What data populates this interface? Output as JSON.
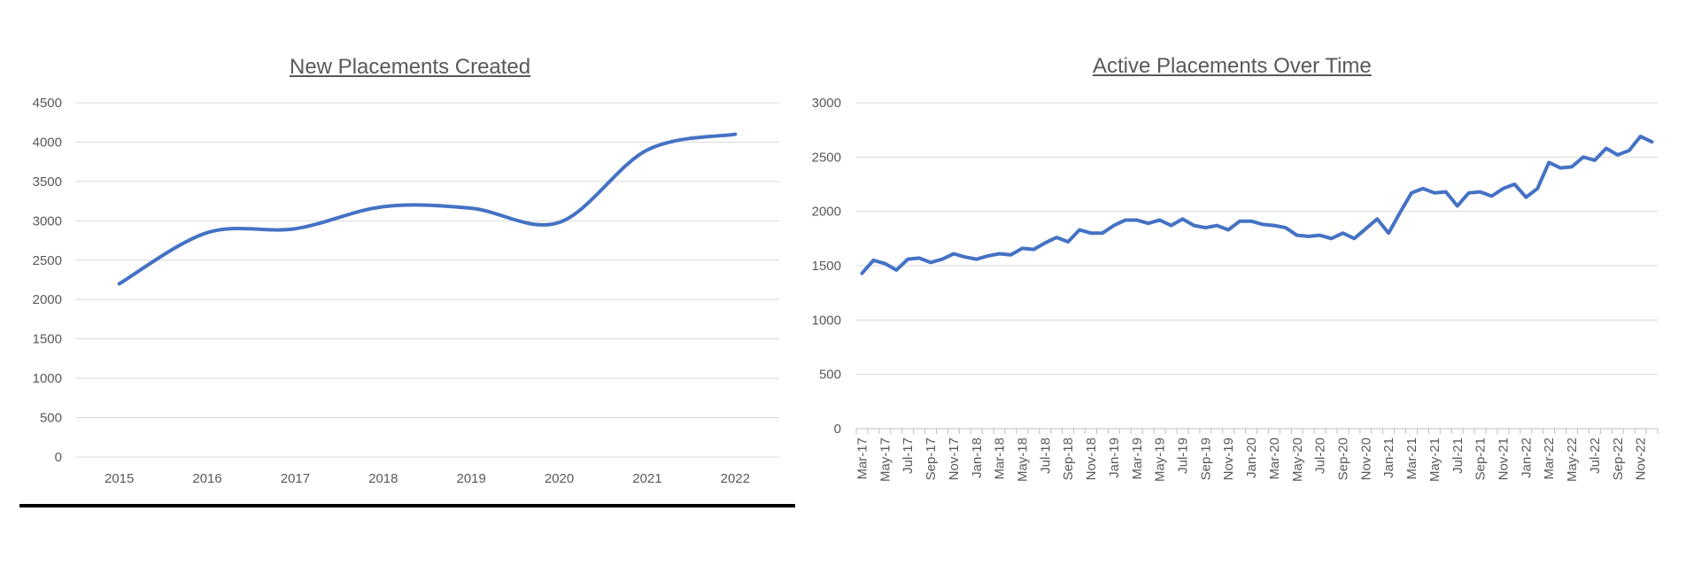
{
  "chart_data": [
    {
      "type": "line",
      "title": "New Placements Created",
      "xlabel": "",
      "ylabel": "",
      "categories": [
        "2015",
        "2016",
        "2017",
        "2018",
        "2019",
        "2020",
        "2021",
        "2022"
      ],
      "values": [
        2200,
        2850,
        2900,
        3180,
        3160,
        2980,
        3900,
        4100
      ],
      "y_ticks": [
        0,
        500,
        1000,
        1500,
        2000,
        2500,
        3000,
        3500,
        4000,
        4500
      ],
      "ylim": [
        0,
        4500
      ],
      "smooth": true,
      "grid": true,
      "legend": "none",
      "color": "#4472c4"
    },
    {
      "type": "line",
      "title": "Active Placements Over Time",
      "xlabel": "",
      "ylabel": "",
      "categories": [
        "Mar-17",
        "Apr-17",
        "May-17",
        "Jun-17",
        "Jul-17",
        "Aug-17",
        "Sep-17",
        "Oct-17",
        "Nov-17",
        "Dec-17",
        "Jan-18",
        "Feb-18",
        "Mar-18",
        "Apr-18",
        "May-18",
        "Jun-18",
        "Jul-18",
        "Aug-18",
        "Sep-18",
        "Oct-18",
        "Nov-18",
        "Dec-18",
        "Jan-19",
        "Feb-19",
        "Mar-19",
        "Apr-19",
        "May-19",
        "Jun-19",
        "Jul-19",
        "Aug-19",
        "Sep-19",
        "Oct-19",
        "Nov-19",
        "Dec-19",
        "Jan-20",
        "Feb-20",
        "Mar-20",
        "Apr-20",
        "May-20",
        "Jun-20",
        "Jul-20",
        "Aug-20",
        "Sep-20",
        "Oct-20",
        "Nov-20",
        "Dec-20",
        "Jan-21",
        "Feb-21",
        "Mar-21",
        "Apr-21",
        "May-21",
        "Jun-21",
        "Jul-21",
        "Aug-21",
        "Sep-21",
        "Oct-21",
        "Nov-21",
        "Dec-21",
        "Jan-22",
        "Feb-22",
        "Mar-22",
        "Apr-22",
        "May-22",
        "Jun-22",
        "Jul-22",
        "Aug-22",
        "Sep-22",
        "Oct-22",
        "Nov-22",
        "Dec-22"
      ],
      "tick_labels": [
        "Mar-17",
        "May-17",
        "Jul-17",
        "Sep-17",
        "Nov-17",
        "Jan-18",
        "Mar-18",
        "May-18",
        "Jul-18",
        "Sep-18",
        "Nov-18",
        "Jan-19",
        "Mar-19",
        "May-19",
        "Jul-19",
        "Sep-19",
        "Nov-19",
        "Jan-20",
        "Mar-20",
        "May-20",
        "Jul-20",
        "Sep-20",
        "Nov-20",
        "Jan-21",
        "Mar-21",
        "May-21",
        "Jul-21",
        "Sep-21",
        "Nov-21",
        "Jan-22",
        "Mar-22",
        "May-22",
        "Jul-22",
        "Sep-22",
        "Nov-22"
      ],
      "values": [
        1430,
        1550,
        1520,
        1460,
        1560,
        1570,
        1530,
        1560,
        1610,
        1580,
        1560,
        1590,
        1610,
        1600,
        1660,
        1650,
        1710,
        1760,
        1720,
        1830,
        1800,
        1800,
        1870,
        1920,
        1920,
        1890,
        1920,
        1870,
        1930,
        1870,
        1850,
        1870,
        1830,
        1910,
        1910,
        1880,
        1870,
        1850,
        1780,
        1770,
        1780,
        1750,
        1800,
        1750,
        1840,
        1930,
        1800,
        1990,
        2170,
        2210,
        2170,
        2180,
        2050,
        2170,
        2180,
        2140,
        2210,
        2250,
        2130,
        2210,
        2450,
        2400,
        2410,
        2500,
        2470,
        2580,
        2520,
        2560,
        2690,
        2640
      ],
      "y_ticks": [
        0,
        500,
        1000,
        1500,
        2000,
        2500,
        3000
      ],
      "ylim": [
        0,
        3000
      ],
      "smooth": false,
      "grid": true,
      "legend": "none",
      "color": "#4472c4"
    }
  ]
}
